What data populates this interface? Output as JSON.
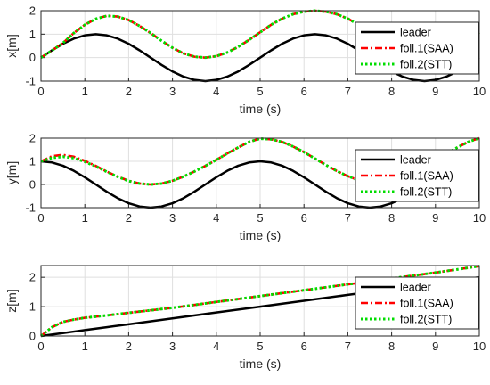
{
  "chart_data": [
    {
      "type": "line",
      "xlabel": "time (s)",
      "ylabel": "x[m]",
      "xlim": [
        0,
        10
      ],
      "ylim": [
        -1,
        2
      ],
      "xticks": [
        "0",
        "1",
        "2",
        "3",
        "4",
        "5",
        "6",
        "7",
        "8",
        "9",
        "10"
      ],
      "yticks": [
        "-1",
        "0",
        "1",
        "2"
      ],
      "grid": true,
      "legend": "top-right",
      "x": [
        0,
        0.25,
        0.5,
        0.75,
        1,
        1.25,
        1.5,
        1.75,
        2,
        2.25,
        2.5,
        2.75,
        3,
        3.25,
        3.5,
        3.75,
        4,
        4.25,
        4.5,
        4.75,
        5,
        5.25,
        5.5,
        5.75,
        6,
        6.25,
        6.5,
        6.75,
        7,
        7.25,
        7.5,
        7.75,
        8,
        8.25,
        8.5,
        8.75,
        9,
        9.25,
        9.5,
        9.75,
        10
      ],
      "series": [
        {
          "name": "leader",
          "color": "#000000",
          "style": "solid",
          "values": [
            0,
            0.31,
            0.59,
            0.81,
            0.95,
            1.0,
            0.95,
            0.81,
            0.59,
            0.31,
            0,
            -0.31,
            -0.59,
            -0.81,
            -0.95,
            -1.0,
            -0.95,
            -0.81,
            -0.59,
            -0.31,
            0,
            0.31,
            0.59,
            0.81,
            0.95,
            1.0,
            0.95,
            0.81,
            0.59,
            0.31,
            0,
            -0.31,
            -0.59,
            -0.81,
            -0.95,
            -1.0,
            -0.95,
            -0.81,
            -0.59,
            -0.31,
            0
          ]
        },
        {
          "name": "foll.1(SAA)",
          "color": "#ff0000",
          "style": "dashdot",
          "values": [
            0,
            0.3,
            0.62,
            1.05,
            1.4,
            1.65,
            1.78,
            1.75,
            1.6,
            1.35,
            1.05,
            0.72,
            0.42,
            0.18,
            0.04,
            0.0,
            0.06,
            0.22,
            0.46,
            0.76,
            1.08,
            1.4,
            1.66,
            1.85,
            1.96,
            2.0,
            1.96,
            1.85,
            1.66,
            1.4,
            1.08,
            0.76,
            0.46,
            0.22,
            0.06,
            0.0,
            0.06,
            0.22,
            0.46,
            0.76,
            1.08
          ]
        },
        {
          "name": "foll.2(STT)",
          "color": "#00dd00",
          "style": "dotted",
          "values": [
            0,
            0.3,
            0.62,
            1.05,
            1.4,
            1.65,
            1.78,
            1.75,
            1.6,
            1.35,
            1.05,
            0.72,
            0.42,
            0.18,
            0.04,
            0.0,
            0.06,
            0.22,
            0.46,
            0.76,
            1.08,
            1.4,
            1.66,
            1.85,
            1.96,
            2.0,
            1.96,
            1.85,
            1.66,
            1.4,
            1.08,
            0.76,
            0.46,
            0.22,
            0.06,
            0.0,
            0.06,
            0.22,
            0.46,
            0.76,
            1.08
          ]
        }
      ]
    },
    {
      "type": "line",
      "xlabel": "time (s)",
      "ylabel": "y[m]",
      "xlim": [
        0,
        10
      ],
      "ylim": [
        -1,
        2
      ],
      "xticks": [
        "0",
        "1",
        "2",
        "3",
        "4",
        "5",
        "6",
        "7",
        "8",
        "9",
        "10"
      ],
      "yticks": [
        "-1",
        "0",
        "1",
        "2"
      ],
      "grid": true,
      "legend": "top-right",
      "x": [
        0,
        0.25,
        0.5,
        0.75,
        1,
        1.25,
        1.5,
        1.75,
        2,
        2.25,
        2.5,
        2.75,
        3,
        3.25,
        3.5,
        3.75,
        4,
        4.25,
        4.5,
        4.75,
        5,
        5.25,
        5.5,
        5.75,
        6,
        6.25,
        6.5,
        6.75,
        7,
        7.25,
        7.5,
        7.75,
        8,
        8.25,
        8.5,
        8.75,
        9,
        9.25,
        9.5,
        9.75,
        10
      ],
      "series": [
        {
          "name": "leader",
          "color": "#000000",
          "style": "solid",
          "values": [
            1.0,
            0.95,
            0.81,
            0.59,
            0.31,
            0,
            -0.31,
            -0.59,
            -0.81,
            -0.95,
            -1.0,
            -0.95,
            -0.81,
            -0.59,
            -0.31,
            0,
            0.31,
            0.59,
            0.81,
            0.95,
            1.0,
            0.95,
            0.81,
            0.59,
            0.31,
            0,
            -0.31,
            -0.59,
            -0.81,
            -0.95,
            -1.0,
            -0.95,
            -0.81,
            -0.59,
            -0.31,
            0,
            0.31,
            0.59,
            0.81,
            0.95,
            1.0
          ]
        },
        {
          "name": "foll.1(SAA)",
          "color": "#ff0000",
          "style": "dashdot",
          "values": [
            1.0,
            1.22,
            1.28,
            1.2,
            1.02,
            0.8,
            0.56,
            0.34,
            0.16,
            0.04,
            0.0,
            0.04,
            0.16,
            0.34,
            0.56,
            0.8,
            1.06,
            1.34,
            1.6,
            1.84,
            1.98,
            1.95,
            1.84,
            1.64,
            1.4,
            1.12,
            0.84,
            0.58,
            0.36,
            0.18,
            0.06,
            0.0,
            0.04,
            0.18,
            0.4,
            0.68,
            1.0,
            1.32,
            1.6,
            1.84,
            2.0
          ]
        },
        {
          "name": "foll.2(STT)",
          "color": "#00dd00",
          "style": "dotted",
          "values": [
            1.0,
            1.15,
            1.2,
            1.14,
            0.98,
            0.78,
            0.55,
            0.33,
            0.15,
            0.04,
            0.0,
            0.04,
            0.16,
            0.34,
            0.56,
            0.8,
            1.06,
            1.34,
            1.6,
            1.84,
            1.98,
            1.95,
            1.84,
            1.64,
            1.4,
            1.12,
            0.84,
            0.58,
            0.36,
            0.18,
            0.06,
            0.0,
            0.04,
            0.18,
            0.4,
            0.68,
            1.0,
            1.32,
            1.6,
            1.84,
            2.0
          ]
        }
      ]
    },
    {
      "type": "line",
      "xlabel": "time (s)",
      "ylabel": "z[m]",
      "xlim": [
        0,
        10
      ],
      "ylim": [
        0,
        2.4
      ],
      "xticks": [
        "0",
        "1",
        "2",
        "3",
        "4",
        "5",
        "6",
        "7",
        "8",
        "9",
        "10"
      ],
      "yticks": [
        "0",
        "1",
        "2"
      ],
      "grid": true,
      "legend": "top-right",
      "x": [
        0,
        0.25,
        0.5,
        0.75,
        1,
        1.5,
        2,
        3,
        4,
        5,
        6,
        7,
        8,
        9,
        10
      ],
      "series": [
        {
          "name": "leader",
          "color": "#000000",
          "style": "solid",
          "values": [
            0,
            0.05,
            0.1,
            0.15,
            0.2,
            0.3,
            0.4,
            0.6,
            0.8,
            1.0,
            1.2,
            1.4,
            1.6,
            1.8,
            2.0
          ]
        },
        {
          "name": "foll.1(SAA)",
          "color": "#ff0000",
          "style": "dashdot",
          "values": [
            0,
            0.3,
            0.48,
            0.56,
            0.62,
            0.7,
            0.79,
            0.96,
            1.16,
            1.36,
            1.56,
            1.76,
            1.96,
            2.16,
            2.38
          ]
        },
        {
          "name": "foll.2(STT)",
          "color": "#00dd00",
          "style": "dotted",
          "values": [
            0,
            0.3,
            0.48,
            0.56,
            0.62,
            0.7,
            0.79,
            0.96,
            1.16,
            1.36,
            1.56,
            1.76,
            1.96,
            2.16,
            2.38
          ]
        }
      ]
    }
  ]
}
